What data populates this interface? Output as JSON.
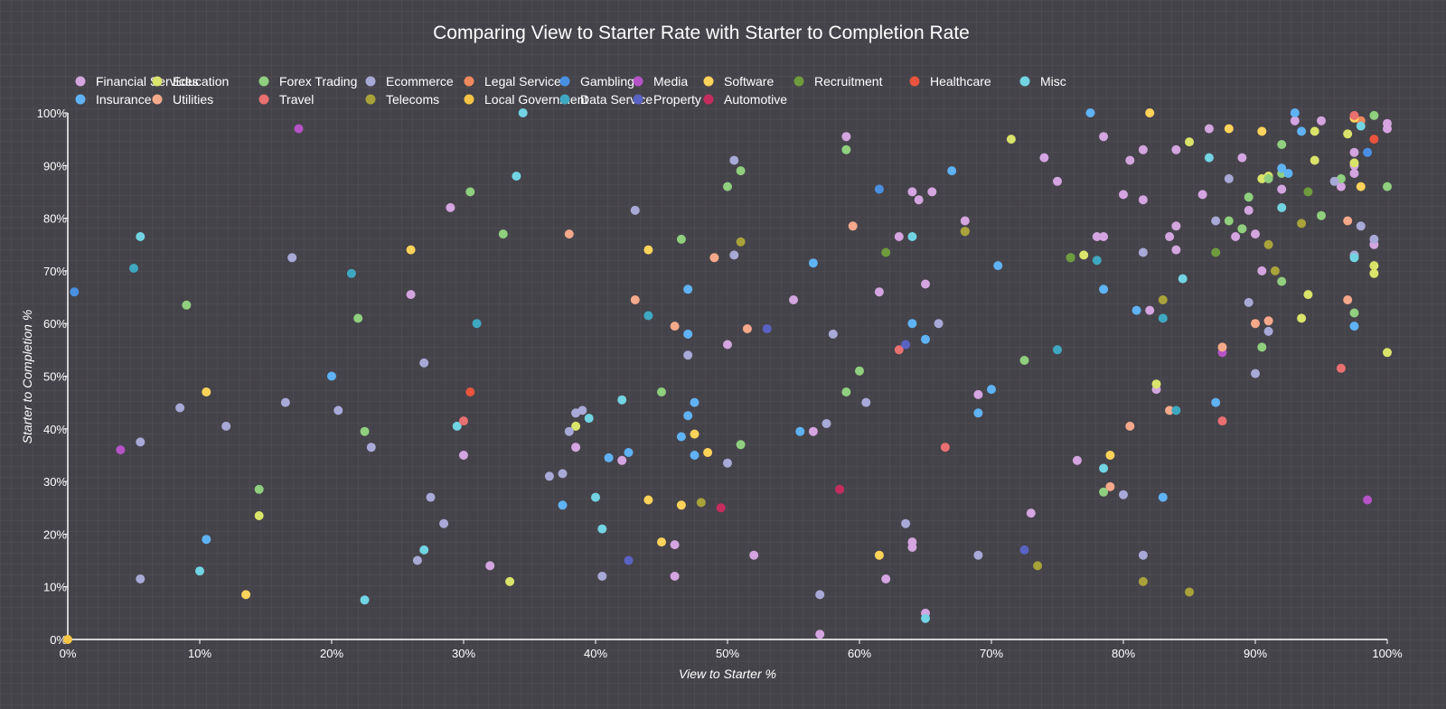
{
  "chart_data": {
    "type": "scatter",
    "title": "Comparing View to Starter Rate with Starter to Completion Rate",
    "xlabel": "View to Starter %",
    "ylabel": "Starter to Completion %",
    "xlim": [
      0,
      100
    ],
    "ylim": [
      0,
      100
    ],
    "xticks": [
      "0%",
      "10%",
      "20%",
      "30%",
      "40%",
      "50%",
      "60%",
      "70%",
      "80%",
      "90%",
      "100%"
    ],
    "yticks": [
      "0%",
      "10%",
      "20%",
      "30%",
      "40%",
      "50%",
      "60%",
      "70%",
      "80%",
      "90%",
      "100%"
    ],
    "legend_position": "top",
    "series": [
      {
        "name": "Financial Services",
        "color": "#d4a5e0",
        "points": [
          [
            29,
            82
          ],
          [
            26,
            65.5
          ],
          [
            50,
            56
          ],
          [
            38.5,
            36.5
          ],
          [
            42,
            34
          ],
          [
            30,
            35
          ],
          [
            32,
            14
          ],
          [
            46,
            18
          ],
          [
            46,
            12
          ],
          [
            52,
            16
          ],
          [
            59,
            95.5
          ],
          [
            61.5,
            66
          ],
          [
            63,
            76.5
          ],
          [
            64,
            85
          ],
          [
            64.5,
            83.5
          ],
          [
            65.5,
            85
          ],
          [
            65,
            67.5
          ],
          [
            68,
            79.5
          ],
          [
            55,
            64.5
          ],
          [
            56.5,
            39.5
          ],
          [
            69,
            46.5
          ],
          [
            73,
            24
          ],
          [
            74,
            91.5
          ],
          [
            75,
            87
          ],
          [
            76.5,
            34
          ],
          [
            78,
            76.5
          ],
          [
            78.5,
            76.5
          ],
          [
            78.5,
            95.5
          ],
          [
            80,
            84.5
          ],
          [
            80.5,
            91
          ],
          [
            81.5,
            93
          ],
          [
            81.5,
            83.5
          ],
          [
            82,
            62.5
          ],
          [
            82.5,
            47.5
          ],
          [
            83.5,
            76.5
          ],
          [
            84,
            78.5
          ],
          [
            84,
            93
          ],
          [
            84,
            74
          ],
          [
            86,
            84.5
          ],
          [
            86.5,
            97
          ],
          [
            89,
            91.5
          ],
          [
            89.5,
            81.5
          ],
          [
            90,
            77
          ],
          [
            90.5,
            70
          ],
          [
            92,
            85.5
          ],
          [
            93,
            98.5
          ],
          [
            95,
            98.5
          ],
          [
            96.5,
            86
          ],
          [
            97.5,
            88.5
          ],
          [
            97.5,
            92.5
          ],
          [
            97.5,
            90
          ],
          [
            99,
            75
          ],
          [
            100,
            97
          ],
          [
            100,
            98
          ],
          [
            65,
            5
          ],
          [
            64,
            17.5
          ],
          [
            64,
            18.5
          ],
          [
            62,
            11.5
          ],
          [
            57,
            1
          ],
          [
            88.5,
            76.5
          ]
        ]
      },
      {
        "name": "Education",
        "color": "#d9e46a",
        "points": [
          [
            14.5,
            23.5
          ],
          [
            33.5,
            11
          ],
          [
            38.5,
            40.5
          ],
          [
            71.5,
            95
          ],
          [
            77,
            73
          ],
          [
            82.5,
            48.5
          ],
          [
            85,
            94.5
          ],
          [
            90.5,
            87.5
          ],
          [
            91,
            88
          ],
          [
            93.5,
            61
          ],
          [
            94,
            65.5
          ],
          [
            94.5,
            96.5
          ],
          [
            94.5,
            91
          ],
          [
            97,
            96
          ],
          [
            97.5,
            90.5
          ],
          [
            99,
            71
          ],
          [
            99,
            69.5
          ],
          [
            100,
            54.5
          ]
        ]
      },
      {
        "name": "Forex Trading",
        "color": "#8fcf7e",
        "points": [
          [
            9,
            63.5
          ],
          [
            14.5,
            28.5
          ],
          [
            22,
            61
          ],
          [
            22.5,
            39.5
          ],
          [
            30.5,
            85
          ],
          [
            33,
            77
          ],
          [
            45,
            47
          ],
          [
            46.5,
            76
          ],
          [
            50,
            86
          ],
          [
            51,
            89
          ],
          [
            51,
            37
          ],
          [
            59,
            93
          ],
          [
            59,
            47
          ],
          [
            60,
            51
          ],
          [
            72.5,
            53
          ],
          [
            78.5,
            28
          ],
          [
            88,
            79.5
          ],
          [
            89,
            78
          ],
          [
            89.5,
            84
          ],
          [
            90.5,
            55.5
          ],
          [
            91,
            87.5
          ],
          [
            92,
            94
          ],
          [
            92,
            88.5
          ],
          [
            92,
            68
          ],
          [
            95,
            80.5
          ],
          [
            96.5,
            87.5
          ],
          [
            97.5,
            62
          ],
          [
            99,
            99.5
          ],
          [
            100,
            86
          ]
        ]
      },
      {
        "name": "Ecommerce",
        "color": "#a9a9d8",
        "points": [
          [
            5.5,
            37.5
          ],
          [
            5.5,
            11.5
          ],
          [
            8.5,
            44
          ],
          [
            12,
            40.5
          ],
          [
            16.5,
            45
          ],
          [
            17,
            72.5
          ],
          [
            20.5,
            43.5
          ],
          [
            23,
            36.5
          ],
          [
            26.5,
            15
          ],
          [
            27,
            52.5
          ],
          [
            27.5,
            27
          ],
          [
            28.5,
            22
          ],
          [
            36.5,
            31
          ],
          [
            37.5,
            31.5
          ],
          [
            38,
            39.5
          ],
          [
            38.5,
            43
          ],
          [
            39,
            43.5
          ],
          [
            40.5,
            12
          ],
          [
            43,
            81.5
          ],
          [
            47,
            54
          ],
          [
            50,
            33.5
          ],
          [
            50.5,
            91
          ],
          [
            50.5,
            73
          ],
          [
            57.5,
            41
          ],
          [
            57,
            8.5
          ],
          [
            58,
            58
          ],
          [
            60.5,
            45
          ],
          [
            63.5,
            22
          ],
          [
            66,
            60
          ],
          [
            69,
            16
          ],
          [
            76,
            72.5
          ],
          [
            80,
            27.5
          ],
          [
            81.5,
            16
          ],
          [
            81.5,
            73.5
          ],
          [
            87,
            79.5
          ],
          [
            88,
            87.5
          ],
          [
            89.5,
            64
          ],
          [
            90,
            50.5
          ],
          [
            91,
            58.5
          ],
          [
            96,
            87
          ],
          [
            97.5,
            73
          ],
          [
            98,
            78.5
          ],
          [
            99,
            76
          ]
        ]
      },
      {
        "name": "Legal Service",
        "color": "#f08a5d",
        "points": [
          [
            98,
            98.5
          ]
        ]
      },
      {
        "name": "Gambling",
        "color": "#4a90e2",
        "points": [
          [
            0.5,
            66
          ],
          [
            61.5,
            85.5
          ],
          [
            98.5,
            92.5
          ]
        ]
      },
      {
        "name": "Media",
        "color": "#b553c7",
        "points": [
          [
            4,
            36
          ],
          [
            17.5,
            97
          ],
          [
            87.5,
            54.5
          ],
          [
            98.5,
            26.5
          ]
        ]
      },
      {
        "name": "Software",
        "color": "#ffd35a",
        "points": [
          [
            10.5,
            47
          ],
          [
            13.5,
            8.5
          ],
          [
            26,
            74
          ],
          [
            44,
            74
          ],
          [
            44,
            26.5
          ],
          [
            45,
            18.5
          ],
          [
            46.5,
            25.5
          ],
          [
            47.5,
            39
          ],
          [
            48.5,
            35.5
          ],
          [
            61.5,
            16
          ],
          [
            68,
            77.5
          ],
          [
            79,
            35
          ],
          [
            82,
            100
          ],
          [
            88,
            97
          ],
          [
            90.5,
            96.5
          ],
          [
            97.5,
            99
          ],
          [
            98,
            86
          ]
        ]
      },
      {
        "name": "Recruitment",
        "color": "#6e9c3d",
        "points": [
          [
            62,
            73.5
          ],
          [
            76,
            72.5
          ],
          [
            87,
            73.5
          ],
          [
            94,
            85
          ]
        ]
      },
      {
        "name": "Healthcare",
        "color": "#e8543e",
        "points": [
          [
            30.5,
            47
          ],
          [
            99,
            95
          ]
        ]
      },
      {
        "name": "Misc",
        "color": "#72d4e3",
        "points": [
          [
            5.5,
            76.5
          ],
          [
            10,
            13
          ],
          [
            22.5,
            7.5
          ],
          [
            27,
            17
          ],
          [
            29.5,
            40.5
          ],
          [
            34,
            88
          ],
          [
            34.5,
            100
          ],
          [
            39.5,
            42
          ],
          [
            40,
            27
          ],
          [
            40.5,
            21
          ],
          [
            42,
            45.5
          ],
          [
            64,
            76.5
          ],
          [
            65,
            4
          ],
          [
            78.5,
            32.5
          ],
          [
            84.5,
            68.5
          ],
          [
            86.5,
            91.5
          ],
          [
            92,
            82
          ],
          [
            97.5,
            72.5
          ],
          [
            98,
            97.5
          ]
        ]
      },
      {
        "name": "Insurance",
        "color": "#5fb3f5",
        "points": [
          [
            10.5,
            19
          ],
          [
            20,
            50
          ],
          [
            37.5,
            25.5
          ],
          [
            41,
            34.5
          ],
          [
            42.5,
            35.5
          ],
          [
            46.5,
            38.5
          ],
          [
            47,
            42.5
          ],
          [
            47,
            66.5
          ],
          [
            47,
            58
          ],
          [
            47.5,
            35
          ],
          [
            47.5,
            45
          ],
          [
            55.5,
            39.5
          ],
          [
            56.5,
            71.5
          ],
          [
            64,
            60
          ],
          [
            65,
            57
          ],
          [
            67,
            89
          ],
          [
            69,
            43
          ],
          [
            70,
            47.5
          ],
          [
            70.5,
            71
          ],
          [
            77.5,
            100
          ],
          [
            78.5,
            66.5
          ],
          [
            81,
            62.5
          ],
          [
            83,
            27
          ],
          [
            87,
            45
          ],
          [
            92,
            89.5
          ],
          [
            92.5,
            88.5
          ],
          [
            93,
            100
          ],
          [
            93.5,
            96.5
          ],
          [
            97.5,
            59.5
          ]
        ]
      },
      {
        "name": "Utilities",
        "color": "#f5a98b",
        "points": [
          [
            38,
            77
          ],
          [
            43,
            64.5
          ],
          [
            46,
            59.5
          ],
          [
            49,
            72.5
          ],
          [
            51.5,
            59
          ],
          [
            59.5,
            78.5
          ],
          [
            79,
            29
          ],
          [
            80.5,
            40.5
          ],
          [
            83.5,
            43.5
          ],
          [
            87.5,
            55.5
          ],
          [
            90,
            60
          ],
          [
            91,
            60.5
          ],
          [
            97,
            79.5
          ],
          [
            97,
            64.5
          ]
        ]
      },
      {
        "name": "Travel",
        "color": "#e87070",
        "points": [
          [
            30,
            41.5
          ],
          [
            63,
            55
          ],
          [
            66.5,
            36.5
          ],
          [
            87.5,
            41.5
          ],
          [
            96.5,
            51.5
          ],
          [
            97.5,
            99.5
          ]
        ]
      },
      {
        "name": "Telecoms",
        "color": "#a8a23a",
        "points": [
          [
            48,
            26
          ],
          [
            51,
            75.5
          ],
          [
            68,
            77.5
          ],
          [
            73.5,
            14
          ],
          [
            81.5,
            11
          ],
          [
            83,
            64.5
          ],
          [
            85,
            9
          ],
          [
            91,
            75
          ],
          [
            91.5,
            70
          ],
          [
            93.5,
            79
          ]
        ]
      },
      {
        "name": "Local Government",
        "color": "#f6c444",
        "points": [
          [
            0,
            0
          ]
        ]
      },
      {
        "name": "Data Service",
        "color": "#3fa8c1",
        "points": [
          [
            5,
            70.5
          ],
          [
            21.5,
            69.5
          ],
          [
            31,
            60
          ],
          [
            44,
            61.5
          ],
          [
            75,
            55
          ],
          [
            78,
            72
          ],
          [
            83,
            61
          ],
          [
            84,
            43.5
          ]
        ]
      },
      {
        "name": "Property",
        "color": "#5a63c4",
        "points": [
          [
            42.5,
            15
          ],
          [
            53,
            59
          ],
          [
            63.5,
            56
          ],
          [
            72.5,
            17
          ]
        ]
      },
      {
        "name": "Automotive",
        "color": "#c62d5e",
        "points": [
          [
            49.5,
            25
          ],
          [
            58.5,
            28.5
          ]
        ]
      }
    ]
  }
}
